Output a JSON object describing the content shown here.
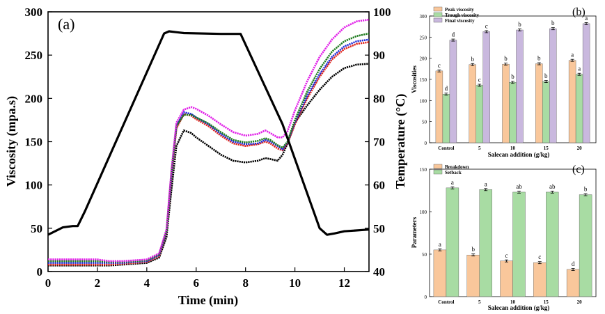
{
  "chart_data": [
    {
      "panel": "(a)",
      "type": "line",
      "xlabel": "Time (min)",
      "ylabel_left": "Viscosity (mpa.s)",
      "ylabel_right": "Temperature (°C)",
      "xlim": [
        0,
        13
      ],
      "xticks": [
        0,
        2,
        4,
        6,
        8,
        10,
        12
      ],
      "ylim_left": [
        0,
        300
      ],
      "yticks_left": [
        0,
        50,
        100,
        150,
        200,
        250,
        300
      ],
      "ylim_right": [
        40,
        100
      ],
      "yticks_right": [
        40,
        50,
        60,
        70,
        80,
        90,
        100
      ],
      "grid": false,
      "temperature": {
        "axis": "right",
        "color": "#000000",
        "x": [
          0,
          0.6,
          1.0,
          1.2,
          1.5,
          4.7,
          4.9,
          5.5,
          7.0,
          7.8,
          9.5,
          11.0,
          11.3,
          11.6,
          12.0,
          13.0
        ],
        "y": [
          48.5,
          50.2,
          50.5,
          50.5,
          54,
          95,
          95.5,
          95.1,
          94.9,
          94.9,
          74,
          50,
          48.5,
          48.8,
          49.3,
          49.7
        ]
      },
      "series": [
        {
          "color": "#000000",
          "x": [
            0,
            2,
            2.5,
            3,
            4,
            4.5,
            4.8,
            5,
            5.2,
            5.5,
            5.8,
            6,
            6.5,
            7,
            7.5,
            8,
            8.5,
            8.8,
            9,
            9.3,
            9.5,
            9.7,
            10,
            10.5,
            11,
            11.5,
            12,
            12.5,
            13
          ],
          "y": [
            7,
            7,
            7,
            8,
            10,
            16,
            40,
            95,
            145,
            163,
            160,
            155,
            145,
            135,
            128,
            126,
            128,
            131,
            130,
            128,
            135,
            148,
            172,
            192,
            210,
            225,
            235,
            239,
            240
          ]
        },
        {
          "color": "#e0241b",
          "x": [
            0,
            2,
            2.5,
            3,
            4,
            4.5,
            4.8,
            5,
            5.2,
            5.5,
            5.8,
            6,
            6.5,
            7,
            7.5,
            8,
            8.5,
            8.8,
            9,
            9.3,
            9.5,
            9.7,
            10,
            10.5,
            11,
            11.5,
            12,
            12.5,
            13
          ],
          "y": [
            8,
            8,
            8,
            9,
            11,
            18,
            45,
            110,
            165,
            182,
            180,
            176,
            168,
            157,
            148,
            145,
            147,
            150,
            148,
            142,
            140,
            148,
            170,
            200,
            225,
            245,
            257,
            263,
            265
          ]
        },
        {
          "color": "#1f2bd8",
          "x": [
            0,
            2,
            2.5,
            3,
            4,
            4.5,
            4.8,
            5,
            5.2,
            5.5,
            5.8,
            6,
            6.5,
            7,
            7.5,
            8,
            8.5,
            8.8,
            9,
            9.3,
            9.5,
            9.7,
            10,
            10.5,
            11,
            11.5,
            12,
            12.5,
            13
          ],
          "y": [
            10,
            10,
            10,
            10,
            12,
            19,
            46,
            112,
            168,
            184,
            182,
            178,
            170,
            159,
            150,
            147,
            148,
            152,
            150,
            145,
            141,
            149,
            172,
            203,
            228,
            248,
            260,
            266,
            268
          ]
        },
        {
          "color": "#1d7a1d",
          "x": [
            0,
            2,
            2.5,
            3,
            4,
            4.5,
            4.8,
            5,
            5.2,
            5.5,
            5.8,
            6,
            6.5,
            7,
            7.5,
            8,
            8.5,
            8.8,
            9,
            9.3,
            9.5,
            9.7,
            10,
            10.5,
            11,
            11.5,
            12,
            12.5,
            13
          ],
          "y": [
            12,
            12,
            11,
            11,
            13,
            20,
            47,
            115,
            168,
            181,
            181,
            178,
            171,
            161,
            152,
            149,
            151,
            154,
            152,
            146,
            143,
            150,
            175,
            208,
            234,
            254,
            266,
            272,
            275
          ]
        },
        {
          "color": "#e11fe8",
          "x": [
            0,
            2,
            2.5,
            3,
            4,
            4.5,
            4.8,
            5,
            5.2,
            5.5,
            5.8,
            6,
            6.5,
            7,
            7.5,
            8,
            8.5,
            8.8,
            9,
            9.3,
            9.5,
            9.7,
            10,
            10.5,
            11,
            11.5,
            12,
            12.5,
            13
          ],
          "y": [
            14,
            14,
            12,
            12,
            14,
            21,
            49,
            118,
            172,
            187,
            190,
            188,
            180,
            170,
            161,
            157,
            159,
            163,
            160,
            155,
            155,
            162,
            186,
            220,
            248,
            268,
            282,
            289,
            291
          ]
        }
      ]
    },
    {
      "panel": "(b)",
      "type": "bar",
      "xlabel": "Salecan addition (g/kg)",
      "ylabel": "Viscosities",
      "categories": [
        "Control",
        "5",
        "10",
        "15",
        "20"
      ],
      "ylim": [
        0,
        300
      ],
      "yticks": [
        0,
        50,
        100,
        150,
        200,
        250,
        300
      ],
      "legend": "top-left",
      "series": [
        {
          "name": "Peak viscosity",
          "color": "#f9c79b",
          "values": [
            170,
            185,
            186,
            187,
            195
          ],
          "letters": [
            "c",
            "b",
            "b",
            "b",
            "a"
          ]
        },
        {
          "name": "Trough viscosity",
          "color": "#a8dca3",
          "values": [
            115,
            136,
            143,
            145,
            162
          ],
          "letters": [
            "d",
            "c",
            "b",
            "b",
            "a"
          ]
        },
        {
          "name": "Final viscosity",
          "color": "#c9b8de",
          "values": [
            243,
            263,
            267,
            270,
            282
          ],
          "letters": [
            "d",
            "c",
            "b",
            "b",
            "a"
          ]
        }
      ]
    },
    {
      "panel": "(c)",
      "type": "bar",
      "xlabel": "Salecan addition (g/kg)",
      "ylabel": "Parameters",
      "categories": [
        "Control",
        "5",
        "10",
        "15",
        "20"
      ],
      "ylim": [
        0,
        150
      ],
      "yticks": [
        0,
        50,
        100,
        150
      ],
      "legend": "top-left",
      "series": [
        {
          "name": "Breakdown",
          "color": "#f9c79b",
          "values": [
            55,
            49,
            42,
            40,
            32
          ],
          "letters": [
            "a",
            "b",
            "c",
            "c",
            "d"
          ]
        },
        {
          "name": "Setback",
          "color": "#a8dca3",
          "values": [
            128,
            126,
            123,
            123,
            120
          ],
          "letters": [
            "a",
            "a",
            "ab",
            "ab",
            "b"
          ]
        }
      ]
    }
  ]
}
